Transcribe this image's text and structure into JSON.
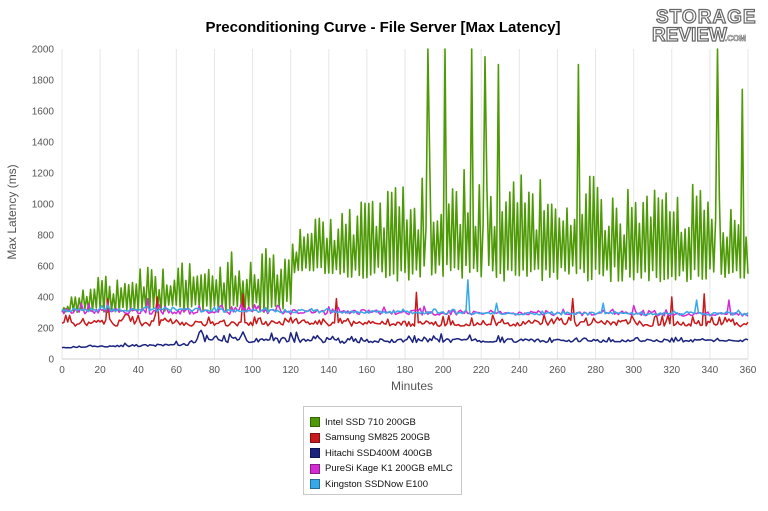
{
  "chart_data": {
    "type": "line",
    "title": "Preconditioning Curve - File Server [Max Latency]",
    "xlabel": "Minutes",
    "ylabel": "Max Latency (ms)",
    "xlim": [
      0,
      360
    ],
    "ylim": [
      0,
      2000
    ],
    "x_ticks": [
      "0",
      "20",
      "40",
      "60",
      "80",
      "100",
      "120",
      "140",
      "160",
      "180",
      "200",
      "220",
      "240",
      "260",
      "280",
      "300",
      "320",
      "340",
      "360"
    ],
    "y_ticks": [
      "0",
      "200",
      "400",
      "600",
      "800",
      "1000",
      "1200",
      "1400",
      "1600",
      "1800",
      "2000"
    ],
    "grid": "vertical",
    "legend_position": "bottom-center",
    "series": [
      {
        "name": "Intel SSD 710 200GB",
        "color": "#4e9a06",
        "profile": [
          [
            0,
            350
          ],
          [
            10,
            450
          ],
          [
            20,
            550
          ],
          [
            40,
            580
          ],
          [
            60,
            630
          ],
          [
            80,
            680
          ],
          [
            100,
            730
          ],
          [
            120,
            800
          ],
          [
            121,
            820
          ],
          [
            140,
            950
          ],
          [
            160,
            1050
          ],
          [
            180,
            1150
          ],
          [
            190,
            1250
          ],
          [
            200,
            1250
          ],
          [
            220,
            1200
          ],
          [
            240,
            1200
          ],
          [
            260,
            1200
          ],
          [
            280,
            1180
          ],
          [
            300,
            1150
          ],
          [
            320,
            1150
          ],
          [
            340,
            1120
          ],
          [
            360,
            1050
          ]
        ],
        "lows": [
          [
            0,
            300
          ],
          [
            120,
            300
          ],
          [
            121,
            550
          ],
          [
            180,
            500
          ],
          [
            360,
            500
          ]
        ],
        "peaks": [
          [
            192,
            2000
          ],
          [
            201,
            2000
          ],
          [
            215,
            2000
          ],
          [
            222,
            1950
          ],
          [
            229,
            1900
          ],
          [
            271,
            1900
          ],
          [
            344,
            2000
          ],
          [
            357,
            1740
          ]
        ]
      },
      {
        "name": "Samsung SM825 200GB",
        "color": "#c8191b",
        "profile": [
          [
            0,
            250
          ],
          [
            60,
            255
          ],
          [
            120,
            250
          ],
          [
            180,
            245
          ],
          [
            240,
            250
          ],
          [
            300,
            250
          ],
          [
            360,
            240
          ]
        ],
        "lows": [
          [
            0,
            190
          ],
          [
            360,
            190
          ]
        ],
        "peaks": [
          [
            24,
            390
          ],
          [
            50,
            400
          ],
          [
            95,
            420
          ],
          [
            144,
            390
          ],
          [
            186,
            430
          ],
          [
            268,
            390
          ],
          [
            320,
            400
          ],
          [
            337,
            420
          ]
        ]
      },
      {
        "name": "Hitachi SSD400M 400GB",
        "color": "#1a237e",
        "profile": [
          [
            0,
            75
          ],
          [
            30,
            90
          ],
          [
            60,
            100
          ],
          [
            65,
            100
          ],
          [
            72,
            150
          ],
          [
            100,
            155
          ],
          [
            120,
            140
          ],
          [
            160,
            130
          ],
          [
            200,
            135
          ],
          [
            240,
            130
          ],
          [
            300,
            125
          ],
          [
            360,
            125
          ]
        ],
        "lows": [
          [
            0,
            70
          ],
          [
            360,
            105
          ]
        ],
        "peaks": [
          [
            72,
            170
          ],
          [
            95,
            175
          ],
          [
            185,
            150
          ]
        ]
      },
      {
        "name": "PureSi Kage K1 200GB eMLC",
        "color": "#d42ad4",
        "profile": [
          [
            0,
            330
          ],
          [
            60,
            325
          ],
          [
            120,
            320
          ],
          [
            180,
            315
          ],
          [
            240,
            305
          ],
          [
            300,
            300
          ],
          [
            360,
            295
          ]
        ],
        "lows": [
          [
            0,
            270
          ],
          [
            360,
            265
          ]
        ],
        "peaks": [
          [
            10,
            360
          ],
          [
            45,
            390
          ],
          [
            190,
            340
          ],
          [
            300,
            345
          ],
          [
            350,
            380
          ]
        ]
      },
      {
        "name": "Kingston SSDNow E100",
        "color": "#37a9e8",
        "profile": [
          [
            0,
            325
          ],
          [
            60,
            330
          ],
          [
            120,
            320
          ],
          [
            180,
            310
          ],
          [
            240,
            300
          ],
          [
            300,
            300
          ],
          [
            360,
            300
          ]
        ],
        "lows": [
          [
            0,
            295
          ],
          [
            360,
            270
          ]
        ],
        "peaks": [
          [
            213,
            510
          ],
          [
            228,
            360
          ],
          [
            284,
            360
          ],
          [
            333,
            380
          ]
        ]
      }
    ]
  },
  "logo": {
    "line1": "STORAGE",
    "line2": "REVIEW",
    "suffix": ".COM"
  }
}
